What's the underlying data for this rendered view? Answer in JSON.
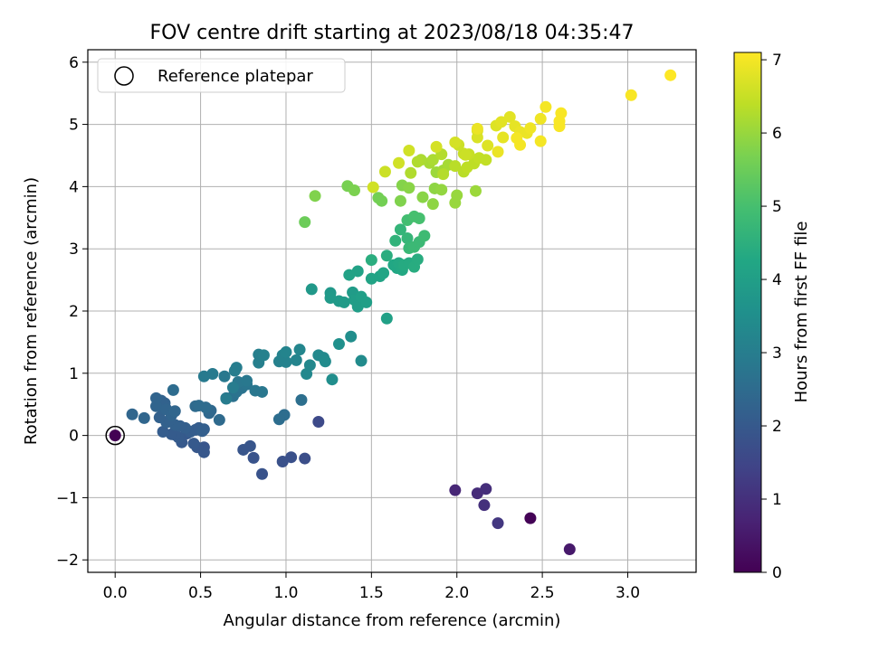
{
  "chart_data": {
    "type": "scatter",
    "title": "FOV centre drift starting at 2023/08/18 04:35:47",
    "xlabel": "Angular distance from reference (arcmin)",
    "ylabel": "Rotation from reference (arcmin)",
    "xlim": [
      -0.16,
      3.4
    ],
    "ylim": [
      -2.2,
      6.2
    ],
    "xticks": [
      0.0,
      0.5,
      1.0,
      1.5,
      2.0,
      2.5,
      3.0
    ],
    "xtick_labels": [
      "0.0",
      "0.5",
      "1.0",
      "1.5",
      "2.0",
      "2.5",
      "3.0"
    ],
    "yticks": [
      -2,
      -1,
      0,
      1,
      2,
      3,
      4,
      5,
      6
    ],
    "ytick_labels": [
      "−2",
      "−1",
      "0",
      "1",
      "2",
      "3",
      "4",
      "5",
      "6"
    ],
    "grid": true,
    "legend": {
      "placement": "top-left",
      "entries": [
        {
          "label": "Reference platepar",
          "marker": "open-circle"
        }
      ]
    },
    "colorbar": {
      "label": "Hours from first FF file",
      "colormap": "viridis",
      "range": [
        0,
        7.1
      ],
      "ticks": [
        0,
        1,
        2,
        3,
        4,
        5,
        6,
        7
      ],
      "tick_labels": [
        "0",
        "1",
        "2",
        "3",
        "4",
        "5",
        "6",
        "7"
      ]
    },
    "reference_point": [
      0.0,
      0.0,
      0.0
    ],
    "points_format": [
      "angular_distance_arcmin",
      "rotation_arcmin",
      "hours_from_first_ff"
    ],
    "points": [
      [
        2.43,
        -1.33,
        0.05
      ],
      [
        2.66,
        -1.83,
        0.5
      ],
      [
        1.99,
        -0.88,
        0.8
      ],
      [
        2.12,
        -0.93,
        0.9
      ],
      [
        2.17,
        -0.86,
        0.95
      ],
      [
        2.16,
        -1.12,
        1.0
      ],
      [
        2.24,
        -1.41,
        1.15
      ],
      [
        1.19,
        0.22,
        1.6
      ],
      [
        1.11,
        -0.37,
        1.7
      ],
      [
        1.03,
        -0.35,
        1.75
      ],
      [
        0.98,
        -0.42,
        1.8
      ],
      [
        0.86,
        -0.62,
        1.85
      ],
      [
        0.81,
        -0.36,
        1.85
      ],
      [
        0.79,
        -0.17,
        1.9
      ],
      [
        0.75,
        -0.23,
        1.9
      ],
      [
        0.52,
        -0.19,
        1.9
      ],
      [
        0.52,
        -0.27,
        1.95
      ],
      [
        0.48,
        -0.19,
        1.95
      ],
      [
        0.46,
        -0.13,
        2.0
      ],
      [
        0.42,
        0.03,
        2.0
      ],
      [
        0.39,
        -0.11,
        2.0
      ],
      [
        0.37,
        -0.03,
        2.05
      ],
      [
        0.35,
        0.01,
        2.05
      ],
      [
        0.33,
        0.02,
        2.05
      ],
      [
        0.28,
        0.06,
        2.1
      ],
      [
        0.44,
        0.06,
        2.1
      ],
      [
        0.47,
        0.09,
        2.1
      ],
      [
        0.49,
        0.12,
        2.1
      ],
      [
        0.51,
        0.07,
        2.15
      ],
      [
        0.52,
        0.1,
        2.15
      ],
      [
        0.41,
        0.12,
        2.15
      ],
      [
        0.38,
        0.15,
        2.15
      ],
      [
        0.35,
        0.17,
        2.2
      ],
      [
        0.3,
        0.21,
        2.2
      ],
      [
        0.32,
        0.25,
        2.2
      ],
      [
        0.26,
        0.29,
        2.2
      ],
      [
        0.28,
        0.43,
        2.25
      ],
      [
        0.29,
        0.52,
        2.25
      ],
      [
        0.27,
        0.56,
        2.25
      ],
      [
        0.24,
        0.47,
        2.3
      ],
      [
        0.24,
        0.6,
        2.3
      ],
      [
        0.3,
        0.42,
        2.3
      ],
      [
        0.33,
        0.33,
        2.3
      ],
      [
        0.35,
        0.39,
        2.35
      ],
      [
        0.1,
        0.34,
        2.35
      ],
      [
        0.17,
        0.28,
        2.35
      ],
      [
        0.56,
        0.4,
        2.4
      ],
      [
        0.55,
        0.36,
        2.4
      ],
      [
        0.61,
        0.25,
        2.45
      ],
      [
        0.47,
        0.47,
        2.45
      ],
      [
        0.49,
        0.48,
        2.5
      ],
      [
        0.53,
        0.45,
        2.5
      ],
      [
        0.34,
        0.73,
        2.5
      ],
      [
        0.99,
        0.33,
        2.55
      ],
      [
        0.96,
        0.26,
        2.55
      ],
      [
        1.09,
        0.57,
        2.6
      ],
      [
        0.65,
        0.6,
        2.65
      ],
      [
        0.69,
        0.63,
        2.65
      ],
      [
        0.71,
        0.7,
        2.7
      ],
      [
        0.74,
        0.76,
        2.7
      ],
      [
        0.77,
        0.82,
        2.75
      ],
      [
        0.72,
        0.86,
        2.8
      ],
      [
        0.82,
        0.72,
        2.8
      ],
      [
        0.86,
        0.7,
        2.8
      ],
      [
        0.77,
        0.88,
        2.85
      ],
      [
        0.64,
        0.95,
        2.85
      ],
      [
        0.57,
        0.99,
        2.9
      ],
      [
        0.52,
        0.95,
        2.9
      ],
      [
        0.65,
        0.59,
        2.95
      ],
      [
        0.69,
        0.77,
        2.95
      ],
      [
        0.71,
        1.09,
        3.0
      ],
      [
        0.7,
        1.04,
        3.0
      ],
      [
        0.84,
        1.17,
        3.05
      ],
      [
        0.84,
        1.3,
        3.05
      ],
      [
        0.87,
        1.29,
        3.1
      ],
      [
        0.96,
        1.19,
        3.1
      ],
      [
        1.0,
        1.18,
        3.15
      ],
      [
        0.98,
        1.29,
        3.15
      ],
      [
        1.0,
        1.34,
        3.2
      ],
      [
        1.06,
        1.21,
        3.2
      ],
      [
        1.08,
        1.38,
        3.25
      ],
      [
        1.12,
        0.99,
        3.3
      ],
      [
        1.14,
        1.13,
        3.3
      ],
      [
        1.19,
        1.29,
        3.35
      ],
      [
        1.22,
        1.25,
        3.35
      ],
      [
        1.23,
        1.19,
        3.4
      ],
      [
        1.44,
        1.2,
        3.4
      ],
      [
        1.38,
        1.59,
        3.5
      ],
      [
        1.27,
        0.9,
        3.5
      ],
      [
        1.31,
        1.47,
        3.55
      ],
      [
        1.15,
        2.35,
        3.8
      ],
      [
        1.26,
        2.29,
        3.8
      ],
      [
        1.31,
        2.16,
        3.85
      ],
      [
        1.26,
        2.21,
        3.85
      ],
      [
        1.34,
        2.14,
        3.9
      ],
      [
        1.39,
        2.3,
        3.9
      ],
      [
        1.4,
        2.18,
        3.95
      ],
      [
        1.42,
        2.07,
        3.95
      ],
      [
        1.44,
        2.23,
        4.0
      ],
      [
        1.47,
        2.14,
        4.0
      ],
      [
        1.59,
        1.88,
        4.05
      ],
      [
        1.37,
        2.58,
        4.1
      ],
      [
        1.42,
        2.64,
        4.1
      ],
      [
        1.5,
        2.52,
        4.15
      ],
      [
        1.55,
        2.56,
        4.15
      ],
      [
        1.57,
        2.61,
        4.2
      ],
      [
        1.63,
        2.74,
        4.25
      ],
      [
        1.65,
        2.69,
        4.25
      ],
      [
        1.66,
        2.77,
        4.3
      ],
      [
        1.68,
        2.66,
        4.3
      ],
      [
        1.69,
        2.74,
        4.35
      ],
      [
        1.72,
        2.77,
        4.35
      ],
      [
        1.75,
        2.71,
        4.4
      ],
      [
        1.77,
        2.83,
        4.4
      ],
      [
        1.59,
        2.89,
        4.45
      ],
      [
        1.5,
        2.82,
        4.45
      ],
      [
        1.64,
        3.13,
        4.6
      ],
      [
        1.67,
        3.31,
        4.65
      ],
      [
        1.71,
        3.17,
        4.7
      ],
      [
        1.72,
        3.01,
        4.75
      ],
      [
        1.75,
        3.03,
        4.8
      ],
      [
        1.78,
        3.11,
        4.8
      ],
      [
        1.81,
        3.21,
        4.85
      ],
      [
        1.71,
        3.46,
        4.95
      ],
      [
        1.75,
        3.52,
        5.0
      ],
      [
        1.78,
        3.49,
        5.0
      ],
      [
        1.11,
        3.43,
        5.5
      ],
      [
        1.54,
        3.82,
        5.6
      ],
      [
        1.56,
        3.77,
        5.6
      ],
      [
        1.36,
        4.01,
        5.65
      ],
      [
        1.4,
        3.94,
        5.7
      ],
      [
        1.17,
        3.85,
        5.75
      ],
      [
        1.67,
        3.77,
        5.75
      ],
      [
        1.68,
        4.02,
        5.8
      ],
      [
        1.72,
        3.98,
        5.85
      ],
      [
        1.8,
        3.83,
        5.85
      ],
      [
        1.86,
        3.72,
        5.9
      ],
      [
        1.87,
        3.97,
        5.9
      ],
      [
        1.91,
        3.95,
        5.95
      ],
      [
        1.99,
        3.74,
        6.0
      ],
      [
        2.0,
        3.86,
        6.0
      ],
      [
        2.11,
        3.93,
        6.05
      ],
      [
        1.88,
        4.23,
        6.05
      ],
      [
        1.92,
        4.26,
        6.1
      ],
      [
        1.95,
        4.35,
        6.15
      ],
      [
        1.84,
        4.38,
        6.15
      ],
      [
        1.86,
        4.43,
        6.2
      ],
      [
        1.79,
        4.43,
        6.2
      ],
      [
        1.73,
        4.22,
        6.25
      ],
      [
        1.77,
        4.4,
        6.25
      ],
      [
        1.91,
        4.52,
        6.3
      ],
      [
        1.92,
        4.2,
        6.3
      ],
      [
        1.99,
        4.33,
        6.35
      ],
      [
        2.04,
        4.24,
        6.35
      ],
      [
        2.06,
        4.31,
        6.4
      ],
      [
        2.1,
        4.37,
        6.4
      ],
      [
        2.13,
        4.46,
        6.45
      ],
      [
        2.17,
        4.43,
        6.45
      ],
      [
        2.04,
        4.53,
        6.5
      ],
      [
        2.07,
        4.52,
        6.5
      ],
      [
        2.01,
        4.67,
        6.55
      ],
      [
        2.05,
        4.51,
        6.55
      ],
      [
        1.58,
        4.24,
        6.55
      ],
      [
        1.66,
        4.38,
        6.6
      ],
      [
        1.51,
        3.99,
        6.6
      ],
      [
        1.72,
        4.58,
        6.6
      ],
      [
        1.88,
        4.64,
        6.65
      ],
      [
        1.99,
        4.71,
        6.65
      ],
      [
        2.12,
        4.79,
        6.7
      ],
      [
        2.12,
        4.9,
        6.7
      ],
      [
        2.18,
        4.66,
        6.75
      ],
      [
        2.23,
        4.98,
        6.75
      ],
      [
        2.26,
        5.04,
        6.8
      ],
      [
        2.31,
        5.12,
        6.8
      ],
      [
        2.27,
        4.79,
        6.85
      ],
      [
        2.34,
        4.97,
        6.85
      ],
      [
        2.37,
        4.88,
        6.9
      ],
      [
        2.41,
        4.86,
        6.9
      ],
      [
        2.43,
        4.94,
        6.95
      ],
      [
        2.49,
        5.09,
        6.95
      ],
      [
        2.37,
        4.67,
        7.0
      ],
      [
        2.35,
        4.78,
        7.0
      ],
      [
        2.49,
        4.73,
        7.0
      ],
      [
        2.52,
        5.28,
        7.0
      ],
      [
        2.6,
        4.97,
        7.05
      ],
      [
        2.6,
        5.05,
        7.05
      ],
      [
        2.61,
        5.18,
        7.05
      ],
      [
        2.12,
        4.93,
        6.9
      ],
      [
        2.24,
        4.56,
        6.9
      ],
      [
        3.02,
        5.47,
        7.05
      ],
      [
        3.25,
        5.79,
        7.1
      ]
    ]
  }
}
